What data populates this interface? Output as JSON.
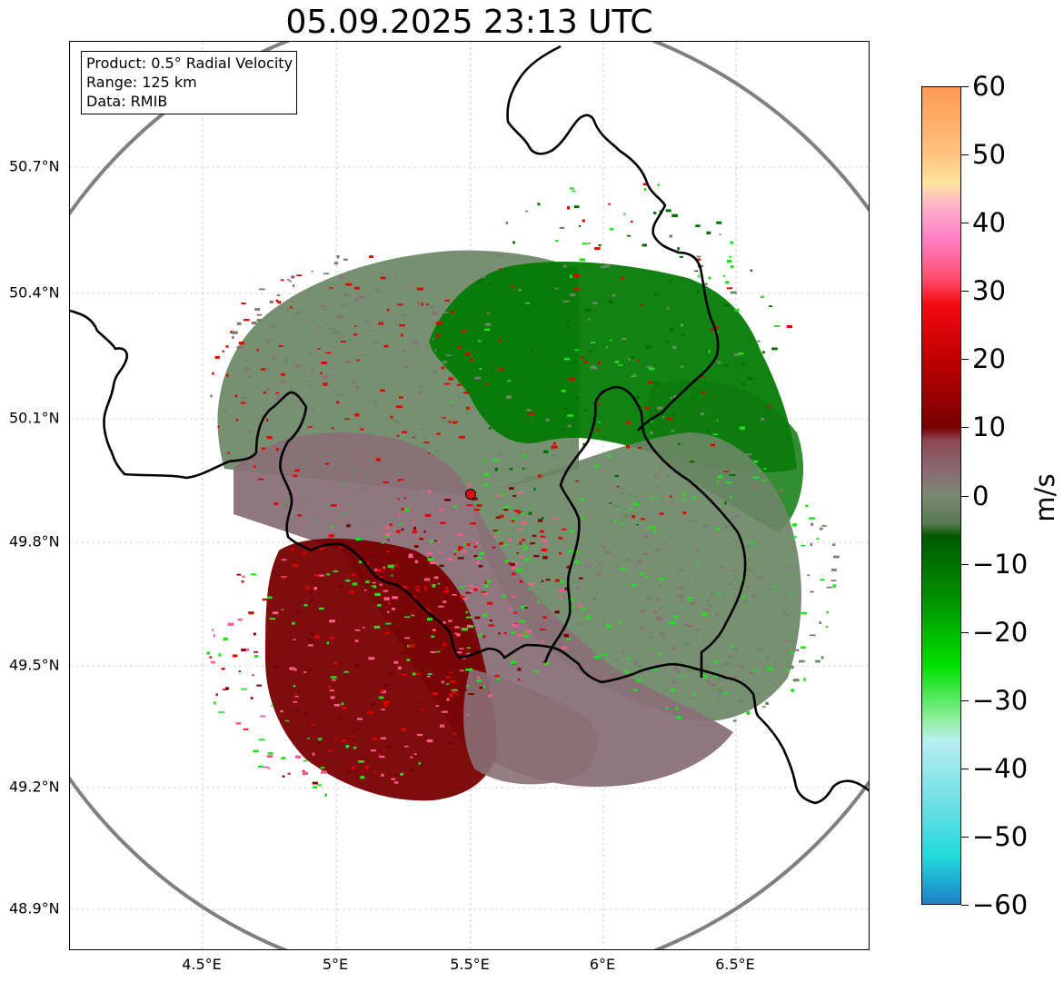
{
  "title": "05.09.2025 23:13 UTC",
  "info": {
    "product": "Product: 0.5° Radial Velocity",
    "range": "Range: 125 km",
    "data_source": "Data: RMIB"
  },
  "axes": {
    "lat_labels": [
      "50.7°N",
      "50.4°N",
      "50.1°N",
      "49.8°N",
      "49.5°N",
      "49.2°N",
      "48.9°N"
    ],
    "lon_labels": [
      "4.5°E",
      "5°E",
      "5.5°E",
      "6°E",
      "6.5°E"
    ]
  },
  "colorbar": {
    "unit": "m/s",
    "tick_labels": [
      "60",
      "50",
      "40",
      "30",
      "20",
      "10",
      "0",
      "−10",
      "−20",
      "−30",
      "−40",
      "−50",
      "−60"
    ],
    "min": -60,
    "max": 60,
    "stops": [
      {
        "value": 60,
        "color": "#fe9a55"
      },
      {
        "value": 50,
        "color": "#ffc37e"
      },
      {
        "value": 46,
        "color": "#ffe59e"
      },
      {
        "value": 43,
        "color": "#ffb8c8"
      },
      {
        "value": 38,
        "color": "#ff80c8"
      },
      {
        "value": 32,
        "color": "#ff5070"
      },
      {
        "value": 28,
        "color": "#f20a10"
      },
      {
        "value": 20,
        "color": "#c00000"
      },
      {
        "value": 10,
        "color": "#780000"
      },
      {
        "value": 8,
        "color": "#8b4a55"
      },
      {
        "value": 3,
        "color": "#8a6f75"
      },
      {
        "value": 0,
        "color": "#7a8a70"
      },
      {
        "value": -4,
        "color": "#5a7a55"
      },
      {
        "value": -6,
        "color": "#005a00"
      },
      {
        "value": -15,
        "color": "#009000"
      },
      {
        "value": -25,
        "color": "#00e000"
      },
      {
        "value": -33,
        "color": "#90f0a0"
      },
      {
        "value": -36,
        "color": "#b8eef0"
      },
      {
        "value": -45,
        "color": "#70e0e6"
      },
      {
        "value": -53,
        "color": "#20dada"
      },
      {
        "value": -60,
        "color": "#1e80c8"
      }
    ]
  },
  "radar": {
    "site_marker_color": "#e01010",
    "range_ring_color": "#808080",
    "border_color": "#000000",
    "colors": {
      "green_dark": "#006e00",
      "green_bright": "#20e020",
      "gray_green": "#6b8766",
      "gray_mauve": "#8a7078",
      "dark_red": "#780000",
      "red": "#e00000",
      "pink": "#ff5a8a"
    }
  }
}
